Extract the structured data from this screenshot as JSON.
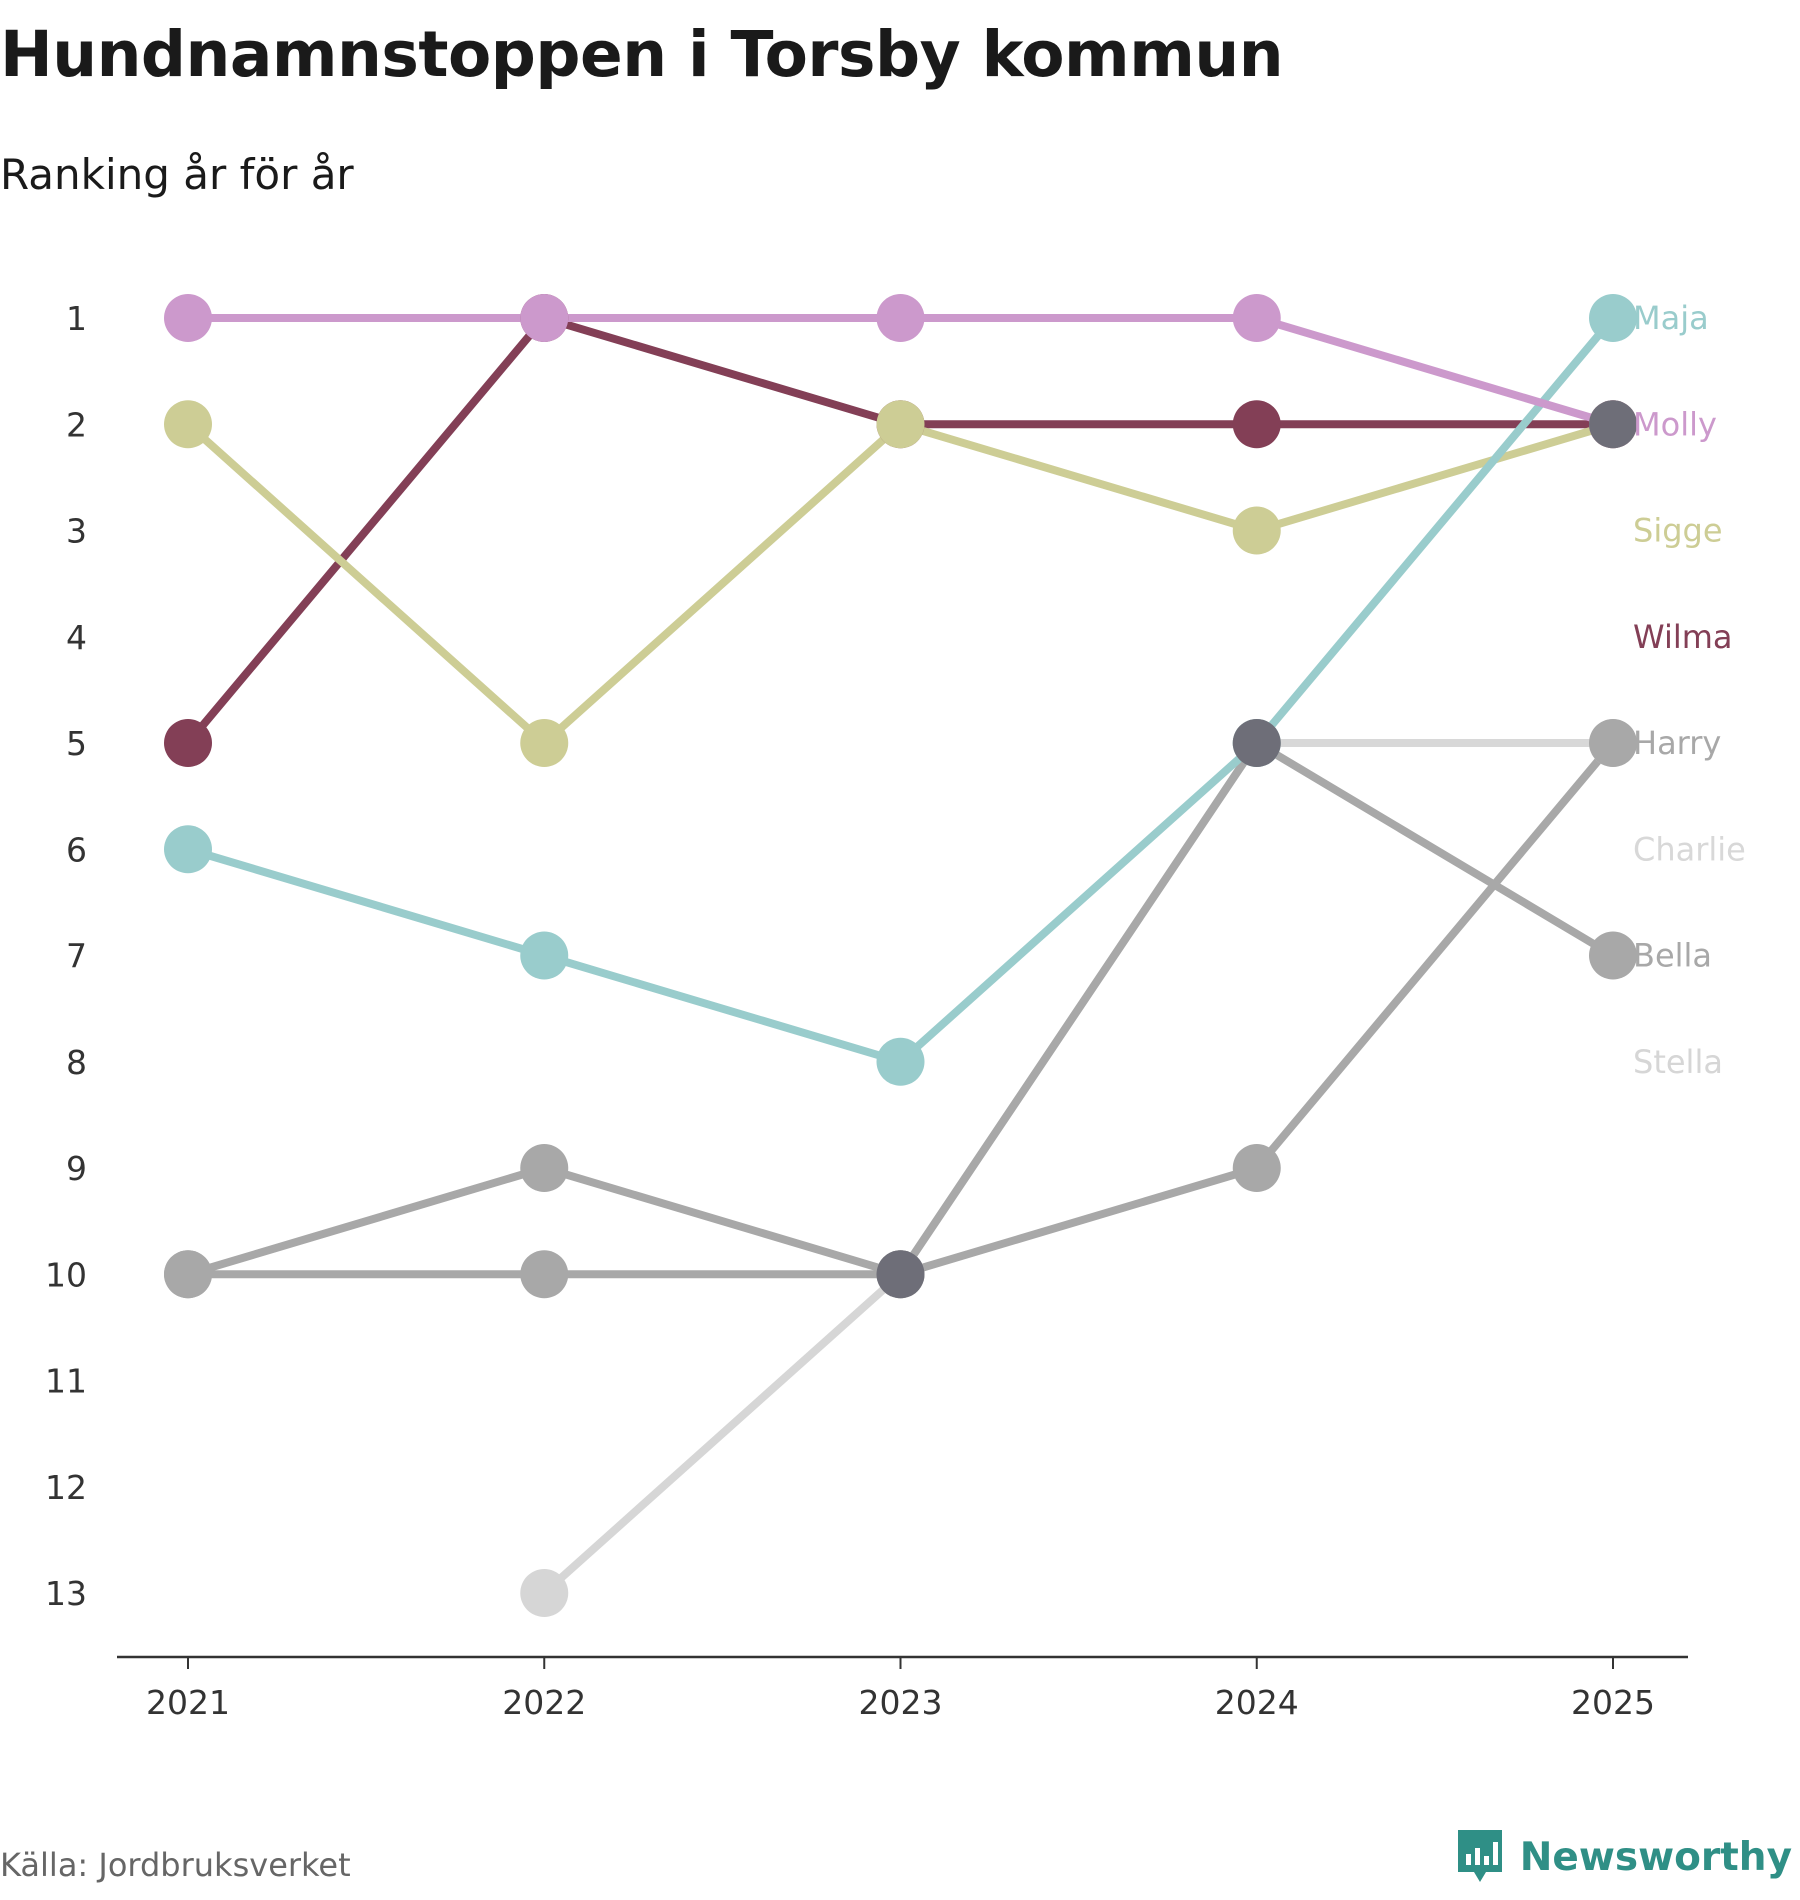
{
  "header": {
    "title": "Hundnamnstoppen i Torsby kommun",
    "subtitle": "Ranking år för år"
  },
  "footer": {
    "source": "Källa: Jordbruksverket",
    "brand": "Newsworthy"
  },
  "chart_data": {
    "type": "line",
    "title": "Hundnamnstoppen i Torsby kommun",
    "subtitle": "Ranking år för år",
    "xlabel": "",
    "ylabel": "",
    "x": [
      2021,
      2022,
      2023,
      2024,
      2025
    ],
    "y_ticks": [
      1,
      2,
      3,
      4,
      5,
      6,
      7,
      8,
      9,
      10,
      11,
      12,
      13
    ],
    "ylim": [
      13,
      1
    ],
    "y_inverted": true,
    "grid": false,
    "series": [
      {
        "name": "Stella",
        "color": "#d6d6d6",
        "values": [
          null,
          13,
          10,
          5,
          null
        ]
      },
      {
        "name": "Bella",
        "color": "#a8a8a8",
        "values": [
          10,
          10,
          10,
          5,
          7
        ]
      },
      {
        "name": "Charlie",
        "color": "#d8d8d8",
        "values": [
          null,
          null,
          null,
          5,
          5
        ]
      },
      {
        "name": "Harry",
        "color": "#a8a8a8",
        "values": [
          10,
          9,
          10,
          9,
          5
        ]
      },
      {
        "name": "Wilma",
        "color": "#833f56",
        "values": [
          5,
          1,
          2,
          2,
          2
        ]
      },
      {
        "name": "Sigge",
        "color": "#cdcd95",
        "values": [
          2,
          5,
          2,
          3,
          2
        ]
      },
      {
        "name": "Maja",
        "color": "#99cccc",
        "values": [
          6,
          7,
          8,
          5,
          1
        ]
      },
      {
        "name": "Molly",
        "color": "#cc99cc",
        "values": [
          1,
          1,
          1,
          1,
          2
        ]
      }
    ],
    "labels_order": [
      {
        "name": "Maja",
        "color": "#99cccc"
      },
      {
        "name": "Molly",
        "color": "#cc99cc"
      },
      {
        "name": "Sigge",
        "color": "#cdcd95"
      },
      {
        "name": "Wilma",
        "color": "#833f56"
      },
      {
        "name": "Harry",
        "color": "#a8a8a8"
      },
      {
        "name": "Charlie",
        "color": "#d8d8d8"
      },
      {
        "name": "Bella",
        "color": "#a8a8a8"
      },
      {
        "name": "Stella",
        "color": "#d6d6d6"
      }
    ],
    "overlap_color": "#6e6e78"
  }
}
